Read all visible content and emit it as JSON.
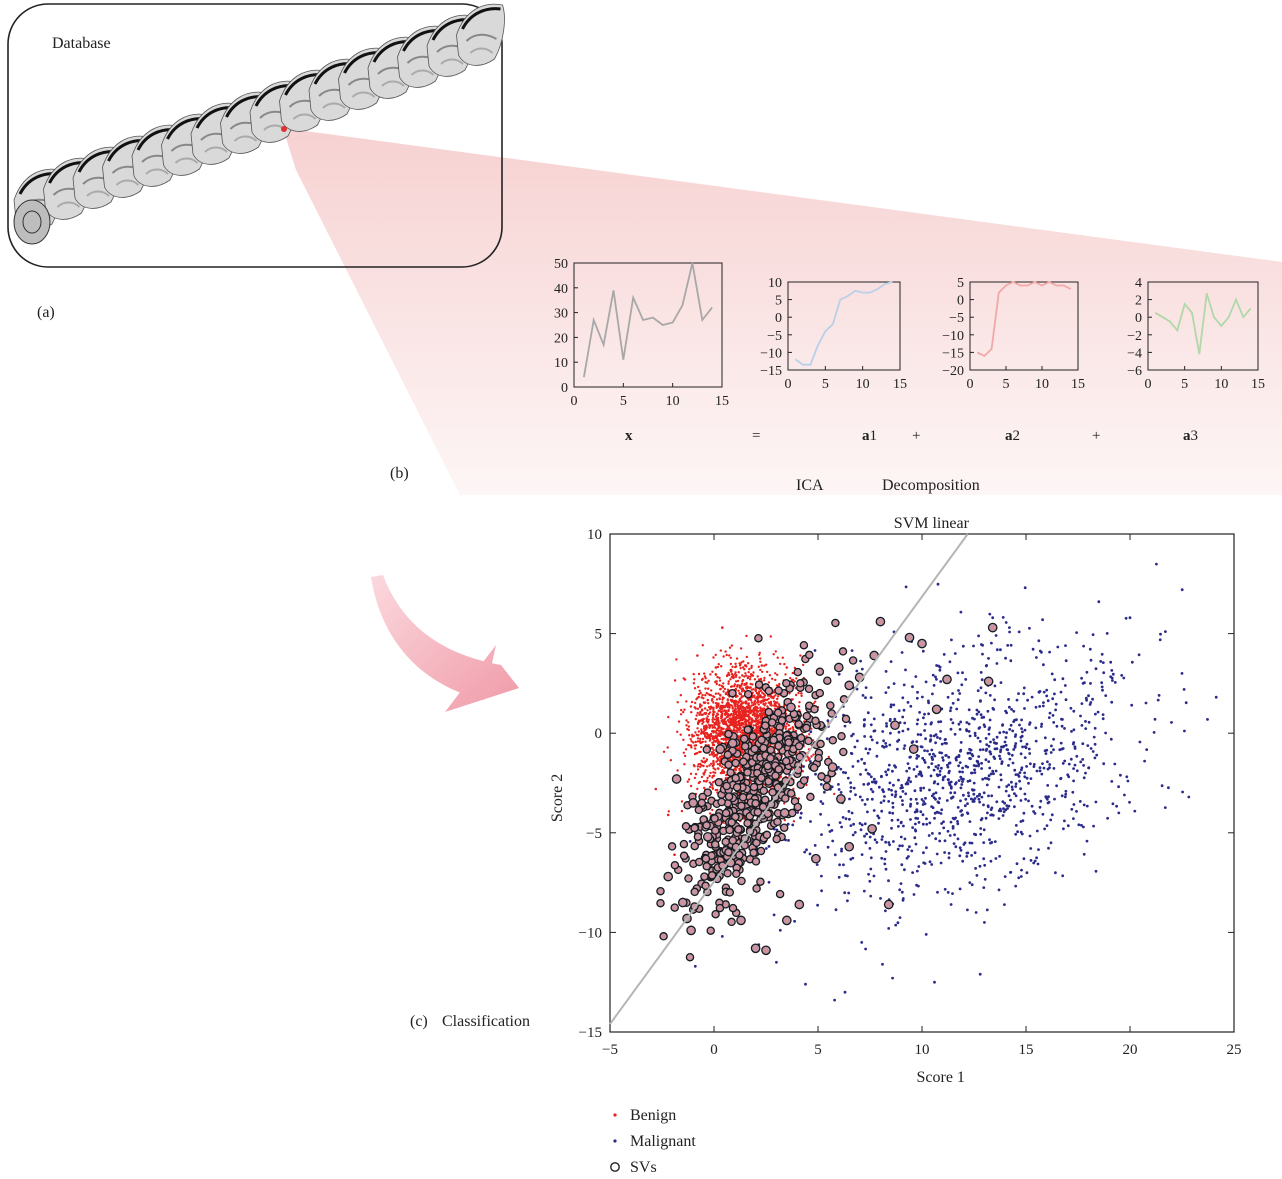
{
  "panel_a": {
    "title": "Database",
    "label": "(a)",
    "slice_count": 16,
    "highlight_color": "#e03030"
  },
  "panel_b": {
    "label": "(b)",
    "caption_left": "ICA",
    "caption_right": "Decomposition",
    "equals": "=",
    "plus": "+",
    "funnel_color": "#f4c2c2",
    "terms": [
      {
        "bold": "x",
        "sub": ""
      },
      {
        "bold": "a",
        "sub": "1"
      },
      {
        "bold": "a",
        "sub": "2"
      },
      {
        "bold": "a",
        "sub": "3"
      }
    ]
  },
  "panel_c": {
    "label": "(c)",
    "caption": "Classification",
    "arrow_color": "#f2a6b0"
  },
  "chart_data": [
    {
      "type": "line",
      "id": "x",
      "color": "#a8a8a8",
      "x": [
        1,
        2,
        3,
        4,
        5,
        6,
        7,
        8,
        9,
        10,
        11,
        12,
        13,
        14
      ],
      "y": [
        4,
        27,
        17,
        39,
        11,
        36,
        27,
        28,
        25,
        26,
        33,
        50,
        27,
        32
      ],
      "xlim": [
        0,
        15
      ],
      "ylim": [
        0,
        50
      ],
      "xticks": [
        "0",
        "5",
        "10",
        "15"
      ],
      "yticks": [
        "0",
        "10",
        "20",
        "30",
        "40",
        "50"
      ]
    },
    {
      "type": "line",
      "id": "a1",
      "color": "#b8d0e8",
      "x": [
        1,
        2,
        3,
        4,
        5,
        6,
        7,
        8,
        9,
        10,
        11,
        12,
        13,
        14
      ],
      "y": [
        -12,
        -13.5,
        -13.5,
        -8,
        -4,
        -2,
        5,
        6,
        7.5,
        7,
        7,
        8,
        9.5,
        10
      ],
      "xlim": [
        0,
        15
      ],
      "ylim": [
        -15,
        10
      ],
      "xticks": [
        "0",
        "5",
        "10",
        "15"
      ],
      "yticks": [
        "−15",
        "−10",
        "−5",
        "0",
        "5",
        "10"
      ]
    },
    {
      "type": "line",
      "id": "a2",
      "color": "#f0a8a8",
      "x": [
        1,
        2,
        3,
        4,
        5,
        6,
        7,
        8,
        9,
        10,
        11,
        12,
        13,
        14
      ],
      "y": [
        -15,
        -16,
        -14,
        2,
        4,
        5,
        4,
        4,
        5,
        4,
        5,
        4,
        4,
        3
      ],
      "xlim": [
        0,
        15
      ],
      "ylim": [
        -20,
        5
      ],
      "xticks": [
        "0",
        "5",
        "10",
        "15"
      ],
      "yticks": [
        "−20",
        "−15",
        "−10",
        "−5",
        "0",
        "5"
      ]
    },
    {
      "type": "line",
      "id": "a3",
      "color": "#b0d8a8",
      "x": [
        1,
        2,
        3,
        4,
        5,
        6,
        7,
        8,
        9,
        10,
        11,
        12,
        13,
        14
      ],
      "y": [
        0.5,
        0,
        -0.5,
        -1.5,
        1.5,
        0.5,
        -4.2,
        2.7,
        0,
        -1,
        0,
        2,
        0,
        1
      ],
      "xlim": [
        0,
        15
      ],
      "ylim": [
        -6,
        4
      ],
      "xticks": [
        "0",
        "5",
        "10",
        "15"
      ],
      "yticks": [
        "−6",
        "−4",
        "−2",
        "0",
        "2",
        "4"
      ]
    },
    {
      "type": "scatter",
      "id": "svm",
      "title": "SVM linear",
      "xlabel": "Score 1",
      "ylabel": "Score 2",
      "xlim": [
        -5,
        25
      ],
      "ylim": [
        -15,
        10
      ],
      "xticks": [
        "−5",
        "0",
        "5",
        "10",
        "15",
        "20",
        "25"
      ],
      "yticks": [
        "−15",
        "−10",
        "−5",
        "0",
        "5",
        "10"
      ],
      "boundary": {
        "x": [
          -5,
          12.2
        ],
        "y": [
          -14.6,
          10
        ]
      },
      "series": [
        {
          "name": "Benign",
          "color": "#e8231f",
          "cloud": {
            "cx": 1.5,
            "cy": 0,
            "sx": 1.3,
            "sy": 1.6,
            "n": 2600,
            "seed": 7
          },
          "samples": [
            [
              -2.8,
              -2.8
            ],
            [
              -0.8,
              3.9
            ],
            [
              0.4,
              5.3
            ],
            [
              3.5,
              3.3
            ],
            [
              4.2,
              2.0
            ],
            [
              -2.2,
              -4.1
            ],
            [
              -1.9,
              -6.1
            ],
            [
              4.5,
              -1.0
            ],
            [
              2.3,
              3.4
            ],
            [
              -0.3,
              -3.7
            ]
          ]
        },
        {
          "name": "Malignant",
          "color": "#2b2b8c",
          "samples": [
            [
              22.5,
              3
            ],
            [
              22.6,
              2.2
            ],
            [
              21.7,
              5.1
            ],
            [
              20.0,
              5.8
            ],
            [
              18.5,
              6.6
            ],
            [
              15.8,
              5.7
            ],
            [
              14.2,
              5.3
            ],
            [
              13.4,
              5.8
            ],
            [
              17.8,
              -3.6
            ],
            [
              19.9,
              -2.4
            ],
            [
              21.2,
              0.7
            ],
            [
              21.4,
              1.9
            ],
            [
              19.1,
              -0.3
            ],
            [
              16.2,
              -5.5
            ],
            [
              14.0,
              -7.2
            ],
            [
              12.6,
              -9.0
            ],
            [
              13.0,
              -9.5
            ],
            [
              11.4,
              -8.6
            ],
            [
              10.2,
              -10.1
            ],
            [
              8.1,
              -11.6
            ],
            [
              6.3,
              -13.0
            ],
            [
              5.8,
              -13.4
            ],
            [
              4.4,
              -12.6
            ],
            [
              3.0,
              -11.5
            ],
            [
              -0.9,
              -11.7
            ],
            [
              0.4,
              -10.2
            ],
            [
              7.1,
              -10.5
            ],
            [
              8.4,
              -9.8
            ],
            [
              9.1,
              -8.3
            ],
            [
              12.3,
              -7.5
            ],
            [
              14.9,
              -6.3
            ],
            [
              16.8,
              -4.8
            ],
            [
              18.4,
              -1.1
            ],
            [
              20.7,
              -1.4
            ],
            [
              10.6,
              -12.5
            ],
            [
              12.8,
              -12.1
            ],
            [
              15.5,
              3.8
            ],
            [
              16.9,
              4.4
            ],
            [
              18.1,
              2.5
            ],
            [
              19.6,
              2.9
            ],
            [
              11.6,
              4.0
            ],
            [
              13.6,
              3.5
            ],
            [
              9.5,
              4.6
            ],
            [
              10.7,
              3.4
            ],
            [
              12.1,
              2.7
            ]
          ],
          "cloud": {
            "cx": 12,
            "cy": -1.8,
            "sx": 4.2,
            "sy": 2.9,
            "n": 1200,
            "seed": 13
          }
        },
        {
          "name": "SVs",
          "color": "#1a1a1a",
          "samples": [
            [
              8.0,
              5.6
            ],
            [
              13.4,
              5.3
            ],
            [
              9.4,
              4.8
            ],
            [
              10.0,
              4.5
            ],
            [
              7.7,
              3.9
            ],
            [
              6.0,
              3.3
            ],
            [
              7.0,
              2.8
            ],
            [
              6.5,
              2.4
            ],
            [
              3.7,
              1.3
            ],
            [
              -1.8,
              -2.3
            ],
            [
              -1.0,
              -3.5
            ],
            [
              -2.2,
              -7.2
            ],
            [
              -1.5,
              -8.5
            ],
            [
              1.3,
              -9.4
            ],
            [
              2.0,
              -10.8
            ],
            [
              2.5,
              -10.9
            ],
            [
              3.5,
              -9.4
            ],
            [
              4.1,
              -8.6
            ],
            [
              8.4,
              -8.6
            ],
            [
              4.9,
              -6.3
            ],
            [
              6.5,
              -5.7
            ],
            [
              7.6,
              -4.8
            ],
            [
              6.1,
              -3.3
            ],
            [
              5.7,
              -1.7
            ],
            [
              0.3,
              -0.8
            ],
            [
              0.9,
              -0.5
            ],
            [
              8.7,
              0.4
            ],
            [
              9.6,
              -0.8
            ],
            [
              10.7,
              1.2
            ],
            [
              11.2,
              2.7
            ],
            [
              13.2,
              2.6
            ],
            [
              -0.3,
              -5.2
            ],
            [
              3.4,
              -4.0
            ],
            [
              0.8,
              -6.5
            ],
            [
              -1.3,
              -9.3
            ],
            [
              -1.1,
              -9.9
            ]
          ],
          "cloud": {
            "cx": 1.9,
            "cy": -3.0,
            "sx": 1.4,
            "sy": 2.6,
            "n": 560,
            "seed": 29
          }
        }
      ],
      "legend_placement": "below"
    }
  ]
}
